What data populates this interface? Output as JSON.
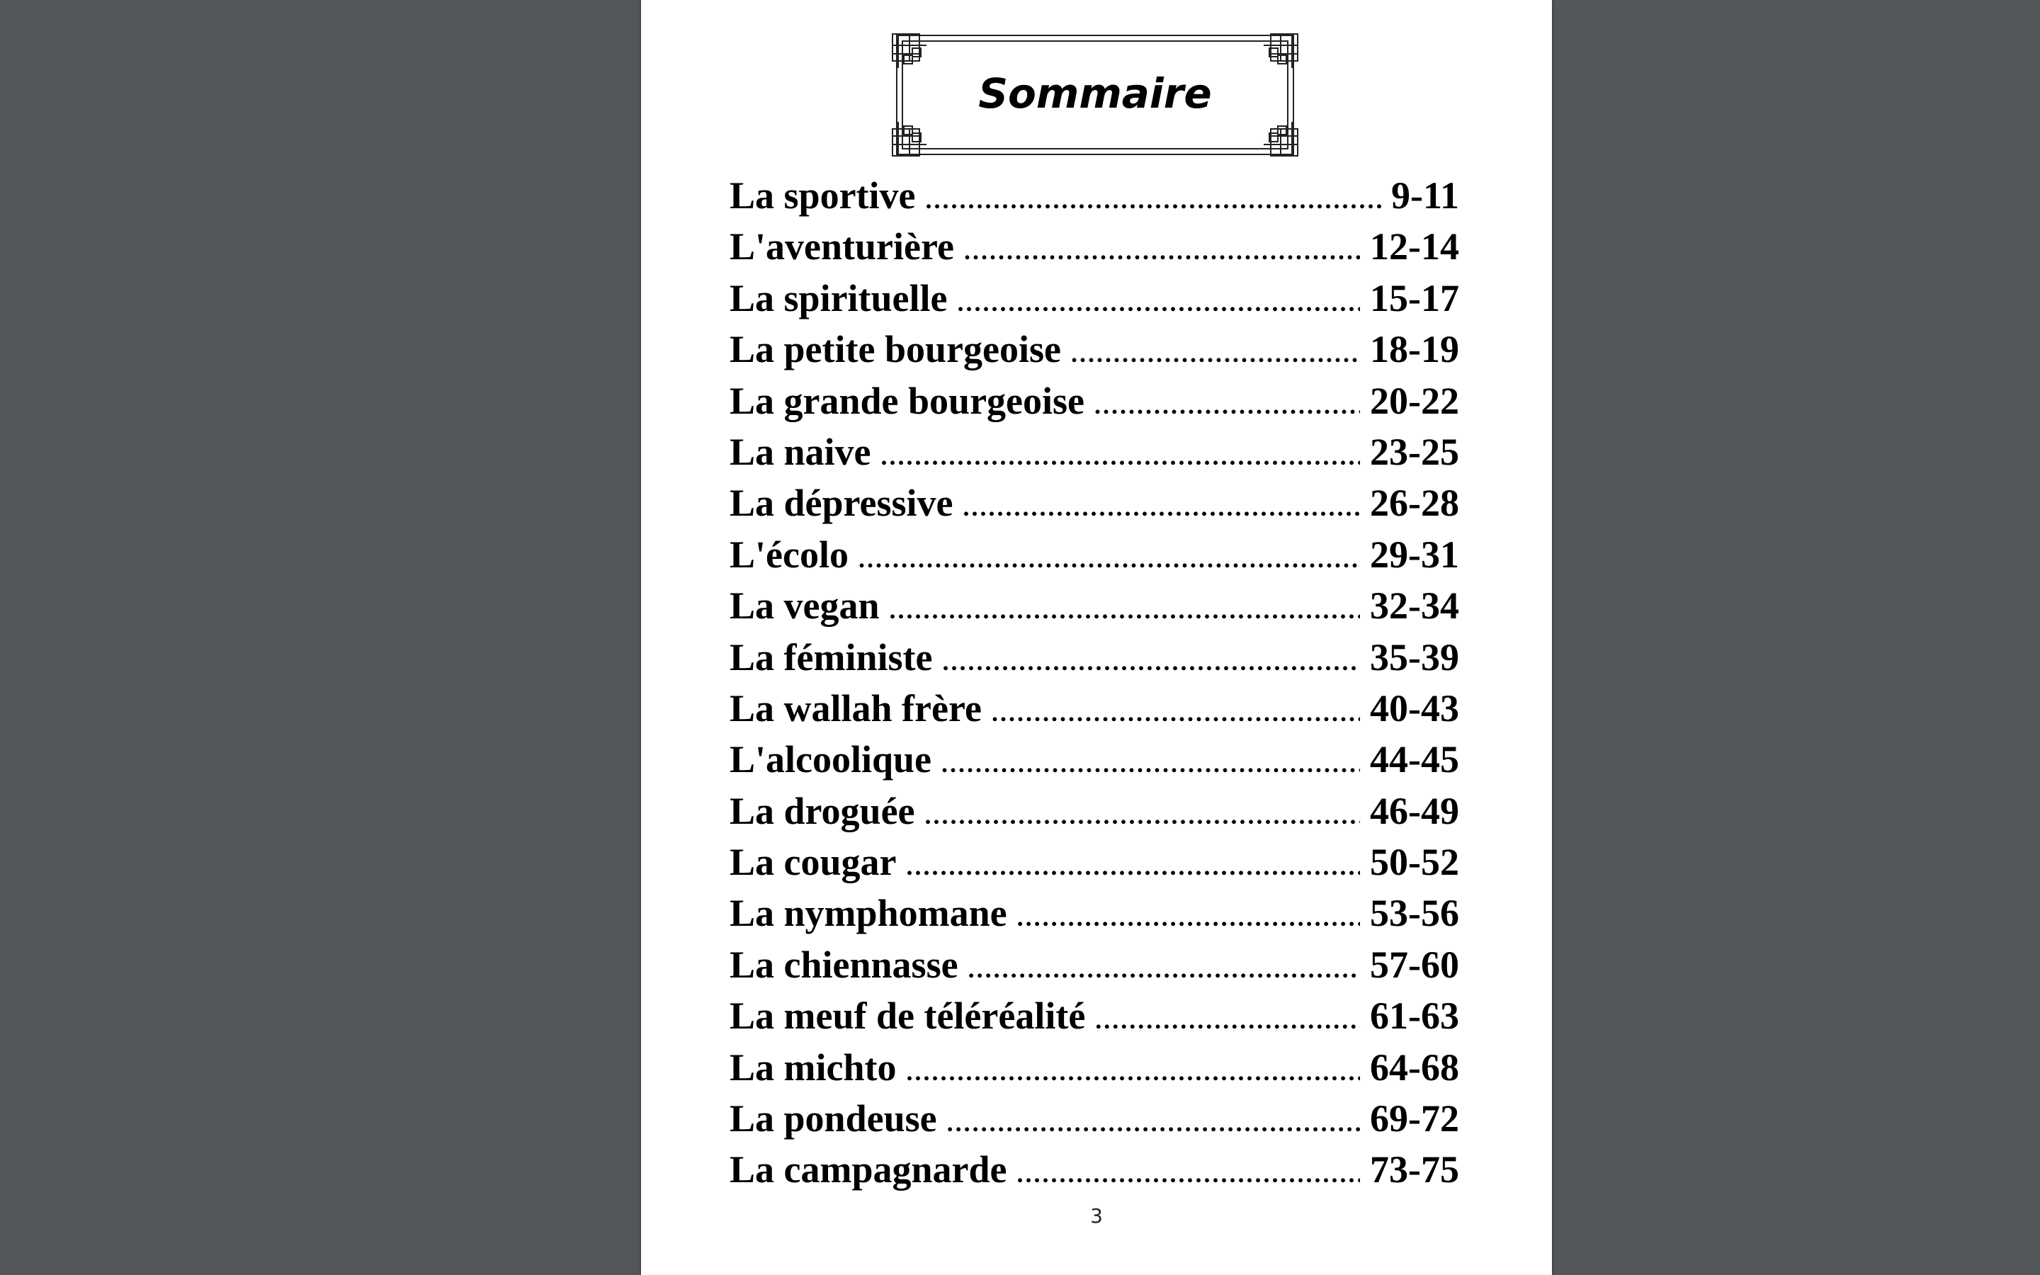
{
  "document": {
    "title": "Sommaire",
    "page_number": "3",
    "entries": [
      {
        "name": "La sportive",
        "pages": "9-11"
      },
      {
        "name": "L'aventurière",
        "pages": "12-14"
      },
      {
        "name": "La spirituelle",
        "pages": "15-17"
      },
      {
        "name": "La petite bourgeoise",
        "pages": "18-19"
      },
      {
        "name": "La grande bourgeoise",
        "pages": "20-22"
      },
      {
        "name": "La naive",
        "pages": "23-25"
      },
      {
        "name": "La dépressive",
        "pages": "26-28"
      },
      {
        "name": "L'écolo",
        "pages": "29-31"
      },
      {
        "name": "La vegan",
        "pages": "32-34"
      },
      {
        "name": "La féministe",
        "pages": "35-39"
      },
      {
        "name": "La wallah frère",
        "pages": "40-43"
      },
      {
        "name": "L'alcoolique",
        "pages": "44-45"
      },
      {
        "name": "La droguée",
        "pages": "46-49"
      },
      {
        "name": "La cougar",
        "pages": "50-52"
      },
      {
        "name": "La nymphomane",
        "pages": "53-56"
      },
      {
        "name": "La chiennasse",
        "pages": "57-60"
      },
      {
        "name": "La meuf de téléréalité",
        "pages": "61-63"
      },
      {
        "name": "La michto",
        "pages": "64-68"
      },
      {
        "name": "La pondeuse",
        "pages": "69-72"
      },
      {
        "name": "La campagnarde",
        "pages": "73-75"
      }
    ]
  },
  "colors": {
    "background": "#53575a",
    "page": "#ffffff",
    "text": "#000000"
  }
}
